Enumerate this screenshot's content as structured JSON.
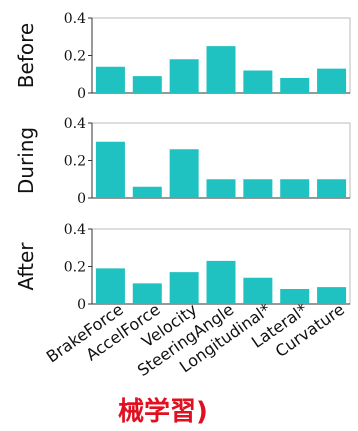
{
  "chart_data": {
    "type": "bar",
    "categories": [
      "BrakeForce",
      "AccelForce",
      "Velocity",
      "SteeringAngle",
      "Longitudinal*",
      "Lateral*",
      "Curvature"
    ],
    "ylim": [
      0,
      0.4
    ],
    "yticks": [
      "0",
      "0.2",
      "0.4"
    ],
    "grid": false,
    "bar_color": "#1fc1c1",
    "panels": [
      {
        "ylabel": "Before",
        "values": [
          0.14,
          0.09,
          0.18,
          0.25,
          0.12,
          0.08,
          0.13
        ]
      },
      {
        "ylabel": "During",
        "values": [
          0.3,
          0.06,
          0.26,
          0.1,
          0.1,
          0.1,
          0.1
        ]
      },
      {
        "ylabel": "After",
        "values": [
          0.19,
          0.11,
          0.17,
          0.23,
          0.14,
          0.08,
          0.09
        ]
      }
    ]
  },
  "caption": "械学習)"
}
